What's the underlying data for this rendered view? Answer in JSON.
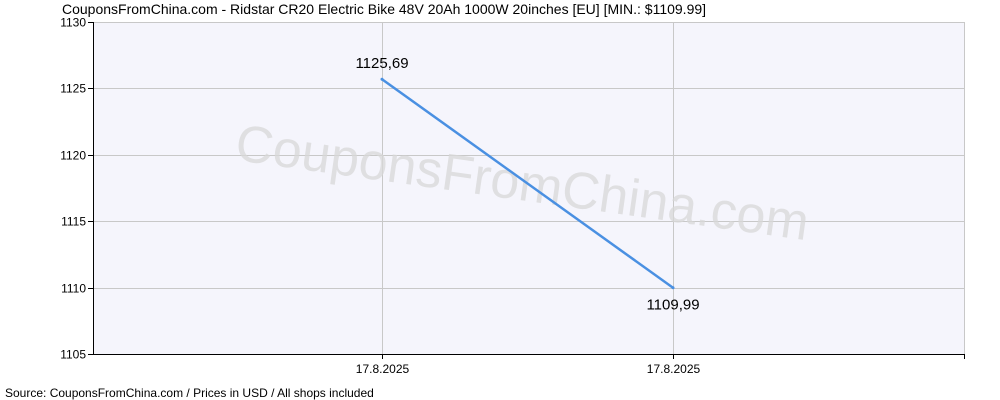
{
  "chart_data": {
    "type": "line",
    "title": "CouponsFromChina.com - Ridstar CR20 Electric Bike 48V 20Ah 1000W 20inches [EU] [MIN.: $1109.99]",
    "footer": "Source:  CouponsFromChina.com / Prices in USD / All shops included",
    "watermark": "CouponsFromChina.com",
    "categories": [
      "17.8.2025",
      "17.8.2025"
    ],
    "series": [
      {
        "values": [
          1125.69,
          1109.99
        ],
        "data_labels": [
          "1125,69",
          "1109,99"
        ],
        "color": "#4a90e2"
      }
    ],
    "y_ticks": [
      1105,
      1110,
      1115,
      1120,
      1125,
      1130
    ],
    "y_tick_labels": [
      "1105",
      "1110",
      "1115",
      "1120",
      "1125",
      "1130"
    ],
    "ylim": [
      1105,
      1130
    ],
    "xlabel": "",
    "ylabel": "",
    "grid": true,
    "legend": "none",
    "colors": {
      "plot_background": "#f5f5fc",
      "grid": "#c8c8c8",
      "axis": "#000000",
      "line": "#4a90e2"
    }
  }
}
